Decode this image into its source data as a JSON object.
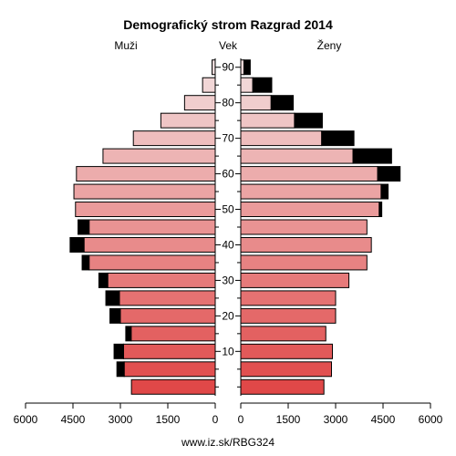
{
  "chart_data": {
    "type": "bar",
    "title": "Demografický strom Razgrad 2014",
    "left_label": "Muži",
    "center_label": "Vek",
    "right_label": "Ženy",
    "footer": "www.iz.sk/RBG324",
    "xlim": [
      0,
      6000
    ],
    "x_ticks": [
      0,
      1500,
      3000,
      4500,
      6000
    ],
    "x_tick_labels": [
      "0",
      "1500",
      "3000",
      "4500",
      "6000"
    ],
    "age_ticks": [
      10,
      20,
      30,
      40,
      50,
      60,
      70,
      80,
      90
    ],
    "age_groups": [
      "0-4",
      "5-9",
      "10-14",
      "15-19",
      "20-24",
      "25-29",
      "30-34",
      "35-39",
      "40-44",
      "45-49",
      "50-54",
      "55-59",
      "60-64",
      "65-69",
      "70-74",
      "75-79",
      "80-84",
      "85-89",
      "90+"
    ],
    "series": [
      {
        "name": "Muži",
        "side": "left",
        "values": [
          2650,
          2880,
          2900,
          2660,
          3000,
          3030,
          3400,
          3990,
          4150,
          3990,
          4420,
          4470,
          4390,
          3550,
          2590,
          1720,
          970,
          400,
          100
        ],
        "excess": [
          0,
          230,
          300,
          170,
          330,
          430,
          280,
          220,
          440,
          350,
          0,
          0,
          0,
          0,
          0,
          0,
          0,
          0,
          0
        ]
      },
      {
        "name": "Ženy",
        "side": "right",
        "values": [
          2630,
          2870,
          2900,
          2690,
          3000,
          3000,
          3420,
          3990,
          4130,
          3990,
          4380,
          4440,
          4330,
          3550,
          2560,
          1700,
          960,
          380,
          100
        ],
        "excess": [
          0,
          0,
          0,
          0,
          0,
          0,
          0,
          0,
          0,
          0,
          80,
          220,
          710,
          1220,
          1020,
          880,
          700,
          600,
          200
        ]
      }
    ],
    "grid": false
  }
}
